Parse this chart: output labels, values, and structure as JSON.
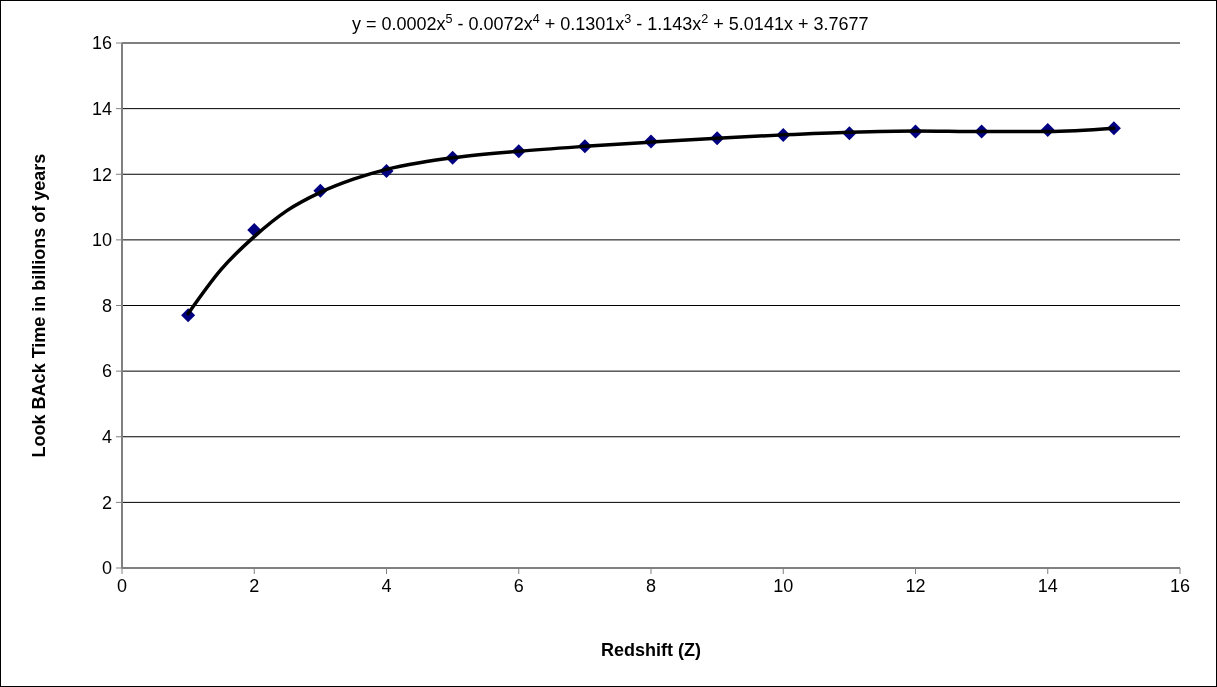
{
  "chart_data": {
    "type": "scatter",
    "xlabel": "Redshift (Z)",
    "ylabel": "Look BAck Time in billions of years",
    "annotations": [
      "y = 0.0002x$^{5}$ - 0.0072x$^{4}$ + 0.1301x$^{3}$ - 1.143x$^{2}$ + 5.0141x + 3.7677"
    ],
    "xlim": [
      0,
      16
    ],
    "xticks": [
      0,
      2,
      4,
      6,
      8,
      10,
      12,
      14,
      16
    ],
    "ylim": [
      0,
      16
    ],
    "yticks": [
      0,
      2,
      4,
      6,
      8,
      10,
      12,
      14,
      16
    ],
    "grid": "y",
    "series": [
      {
        "marker": "diamond",
        "color": "#000080",
        "x": [
          1,
          2,
          3,
          4,
          5,
          6,
          7,
          8,
          9,
          10,
          11,
          12,
          13,
          14,
          15
        ],
        "values": [
          7.7,
          10.3,
          11.5,
          12.1,
          12.5,
          12.7,
          12.85,
          13.0,
          13.1,
          13.2,
          13.25,
          13.3,
          13.3,
          13.35,
          13.4
        ]
      },
      {
        "type": "line",
        "color": "#000000",
        "line_style": "solid",
        "x": [
          1,
          1.5,
          2,
          2.5,
          3,
          3.5,
          4,
          4.5,
          5,
          6,
          7,
          8,
          9,
          10,
          11,
          12,
          13,
          14,
          15
        ],
        "values": [
          7.75,
          9.1,
          10.1,
          10.9,
          11.45,
          11.85,
          12.15,
          12.35,
          12.5,
          12.7,
          12.85,
          12.98,
          13.1,
          13.2,
          13.28,
          13.32,
          13.3,
          13.3,
          13.4
        ]
      }
    ]
  }
}
